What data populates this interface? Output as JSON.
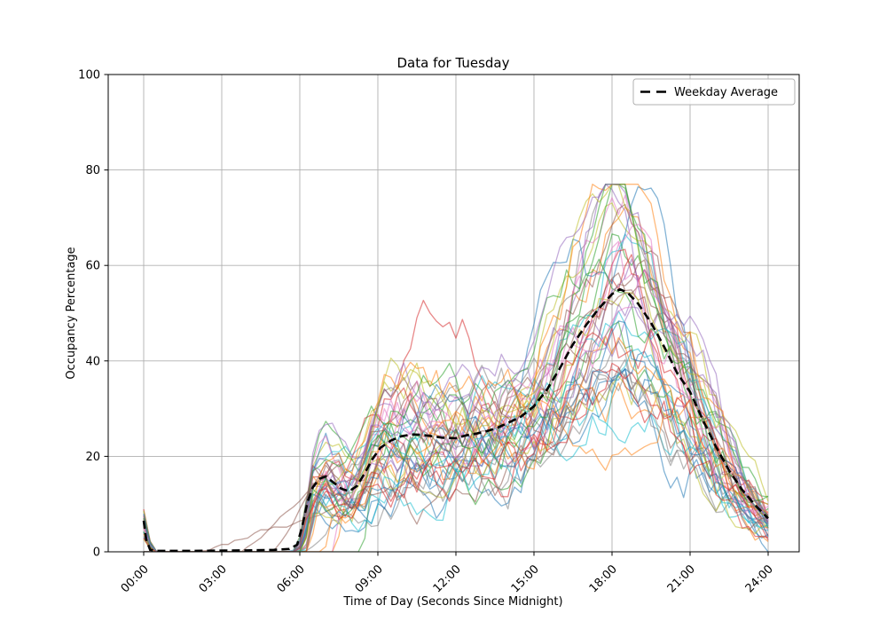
{
  "chart_data": {
    "type": "line",
    "title": "Data for Tuesday",
    "xlabel": "Time of Day (Seconds Since Midnight)",
    "ylabel": "Occupancy Percentage",
    "xlim_hours": [
      0,
      24
    ],
    "ylim": [
      0,
      100
    ],
    "x_ticks": [
      {
        "hours": 0,
        "label": "00:00"
      },
      {
        "hours": 3,
        "label": "03:00"
      },
      {
        "hours": 6,
        "label": "06:00"
      },
      {
        "hours": 9,
        "label": "09:00"
      },
      {
        "hours": 12,
        "label": "12:00"
      },
      {
        "hours": 15,
        "label": "15:00"
      },
      {
        "hours": 18,
        "label": "18:00"
      },
      {
        "hours": 21,
        "label": "21:00"
      },
      {
        "hours": 24,
        "label": "24:00"
      }
    ],
    "y_ticks": [
      0,
      20,
      40,
      60,
      80,
      100
    ],
    "grid": true,
    "grid_color": "#b0b0b0",
    "axis_color": "#000000",
    "legend": {
      "location": "upper right",
      "entries": [
        {
          "label": "Weekday Average",
          "color": "#000000",
          "style": "dashed"
        }
      ]
    },
    "average_series": {
      "name": "Weekday Average",
      "color": "#000000",
      "line_width": 2.6,
      "dash": [
        9,
        5
      ],
      "hours": [
        0,
        0.1,
        0.25,
        0.5,
        2,
        4,
        5,
        5.6,
        5.9,
        6.1,
        6.3,
        6.5,
        6.75,
        7.0,
        7.3,
        7.6,
        7.9,
        8.2,
        8.5,
        8.8,
        9.1,
        9.5,
        9.9,
        10.3,
        10.7,
        11.1,
        11.5,
        12.0,
        12.4,
        12.8,
        13.2,
        13.6,
        14.0,
        14.5,
        15.0,
        15.5,
        16.0,
        16.5,
        17.0,
        17.5,
        18.0,
        18.3,
        18.6,
        19.0,
        19.5,
        20.0,
        20.5,
        21.0,
        21.5,
        22.0,
        22.5,
        23.0,
        23.5,
        24.0
      ],
      "values": [
        6.5,
        2.5,
        0.4,
        0.2,
        0.2,
        0.3,
        0.4,
        0.6,
        1.5,
        5.5,
        10.5,
        13.5,
        15.3,
        15.8,
        14.5,
        13.2,
        12.7,
        13.8,
        16.5,
        19.5,
        21.8,
        23.3,
        24.2,
        24.6,
        24.5,
        24.2,
        23.9,
        23.8,
        24.4,
        24.8,
        25.3,
        26.0,
        27.0,
        28.3,
        30.5,
        34.0,
        38.5,
        43.5,
        47.5,
        51.0,
        54.0,
        55.0,
        54.3,
        52.0,
        48.0,
        43.0,
        37.5,
        33.5,
        27.5,
        22.0,
        17.0,
        13.0,
        9.8,
        7.0
      ]
    },
    "ensemble": {
      "description": "individual Tuesday occupancy traces, semi-transparent matplotlib color cycle",
      "trace_count": 46,
      "colors": [
        "#1f77b4",
        "#ff7f0e",
        "#2ca02c",
        "#d62728",
        "#9467bd",
        "#8c564b",
        "#e377c2",
        "#7f7f7f",
        "#bcbd22",
        "#17becf"
      ],
      "opacity": 0.55,
      "line_width": 1.3,
      "seed": 20240507,
      "step_hours": 0.25,
      "scale_range": [
        0.58,
        1.36
      ],
      "noise_amp": 2.1,
      "noise_persist": 0.72,
      "wobble_amp_range": [
        0.06,
        0.2
      ],
      "start_hour_range": [
        5.7,
        6.3
      ],
      "late_riser_prob": 0.12,
      "late_start_range": [
        6.4,
        8.8
      ],
      "midnight_spike_prob": 0.85,
      "midnight_spike_range": [
        2.5,
        9
      ],
      "spike_outlier": {
        "trace_index": 10,
        "value": 21
      },
      "value_cap": 77,
      "early_traces": [
        {
          "index": 5,
          "ramp_start": 2.0,
          "join": 8.5
        },
        {
          "index": 25,
          "ramp_start": 3.9,
          "join": 7.3
        },
        {
          "index": 35,
          "ramp_start": 5.0,
          "join": 6.8
        }
      ],
      "feature_bumps": [
        {
          "index": 3,
          "center": 11.3,
          "width": 1.5,
          "height": 26
        },
        {
          "index": 21,
          "center": 18.3,
          "width": 1.8,
          "height": -24
        },
        {
          "index": 13,
          "center": 10.0,
          "width": 1.2,
          "height": 10
        }
      ]
    }
  }
}
